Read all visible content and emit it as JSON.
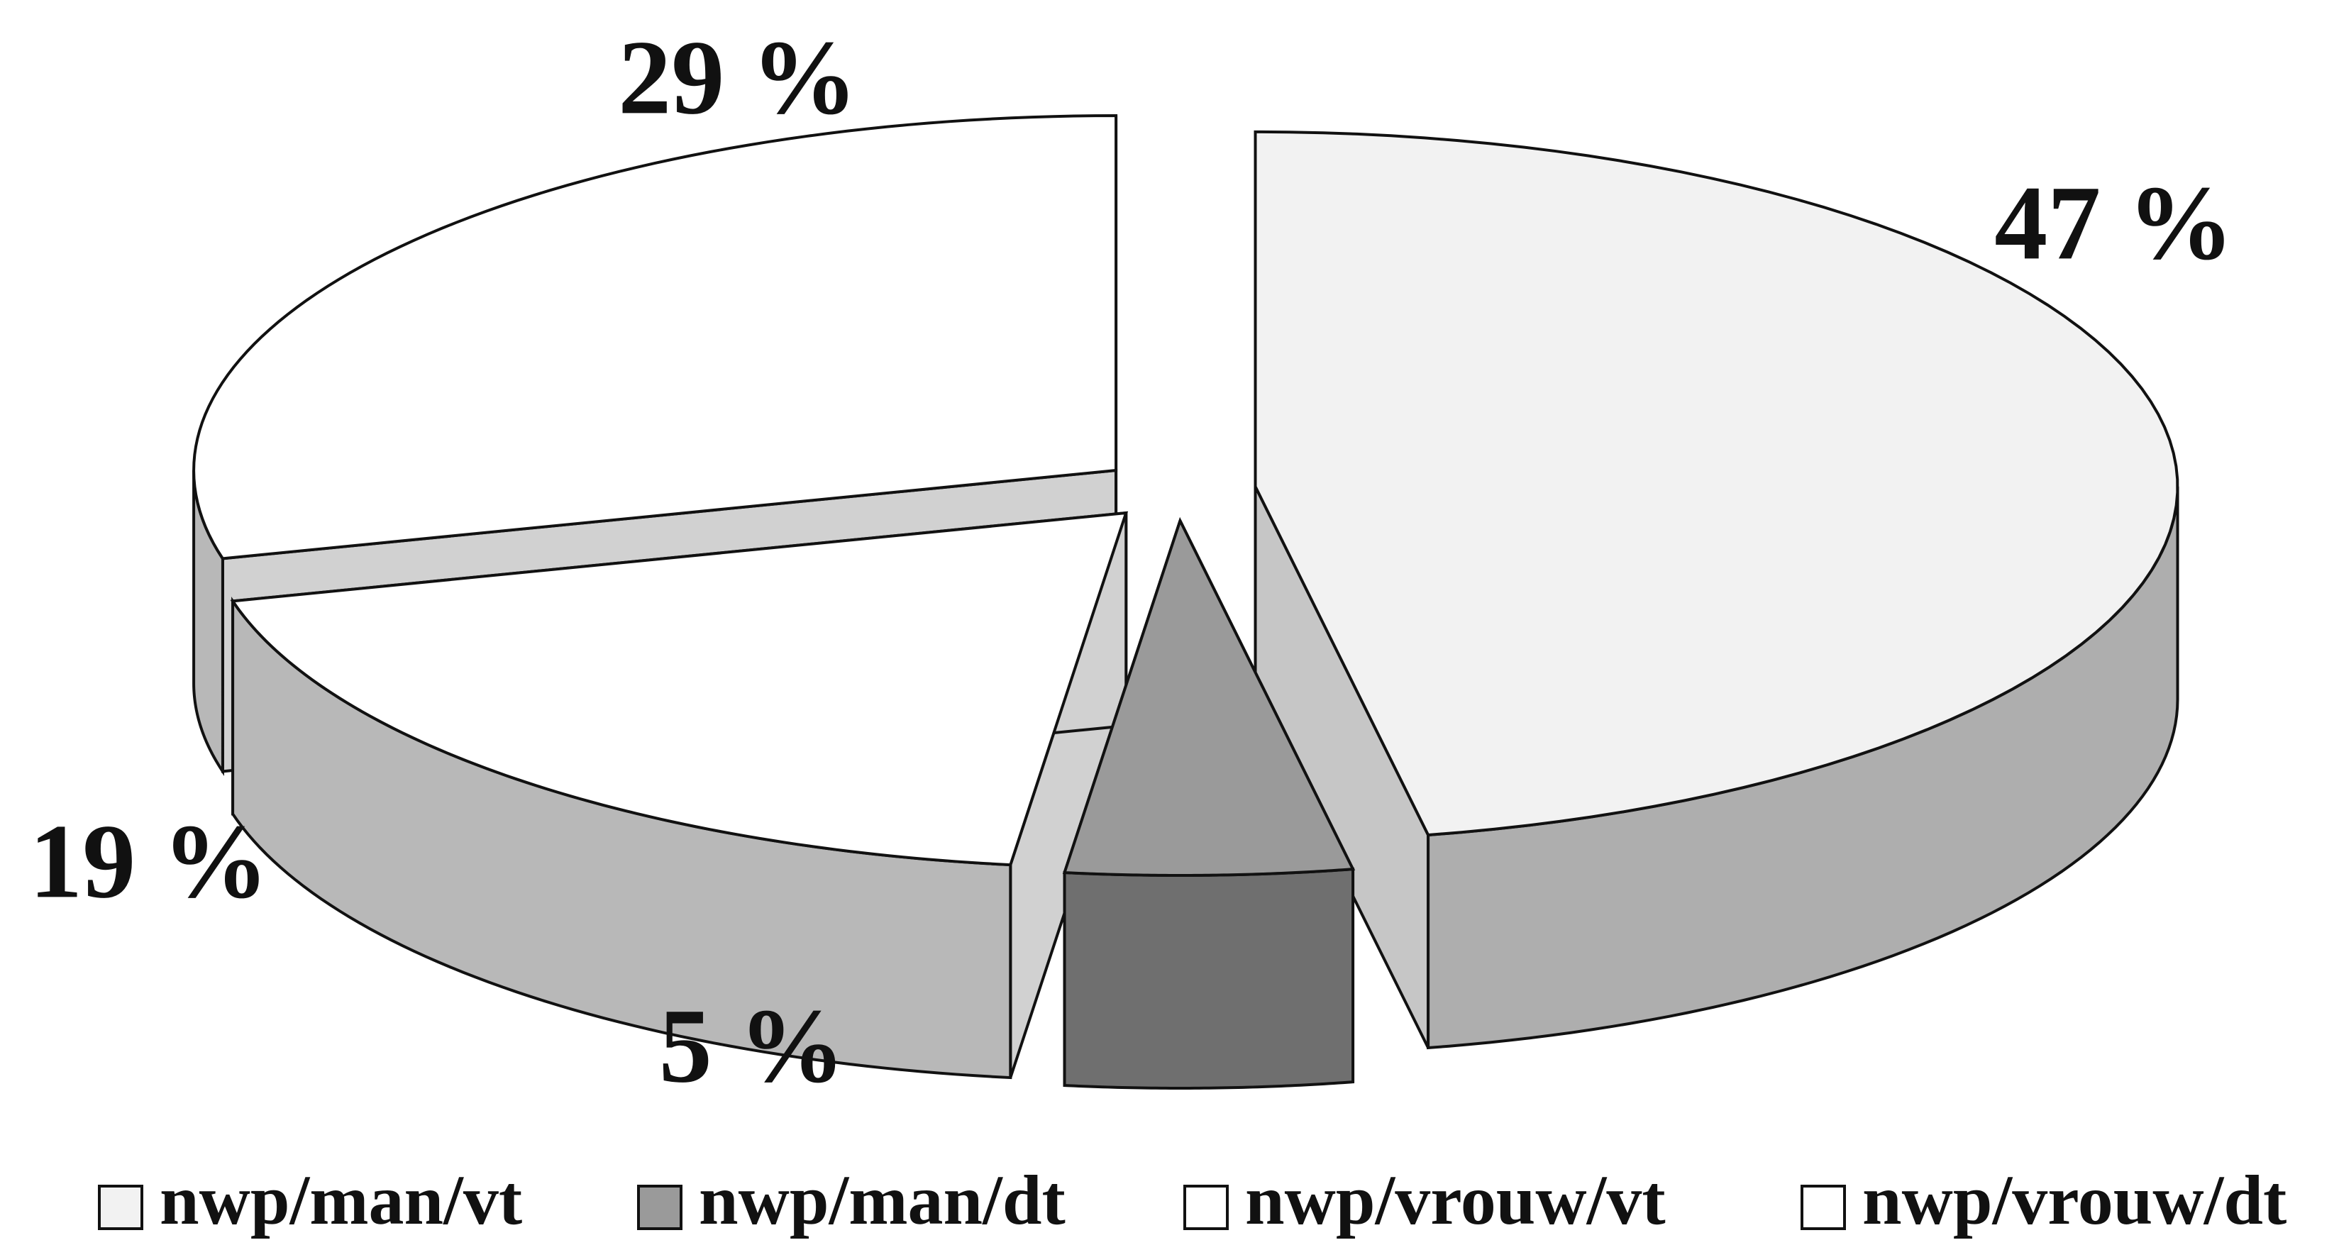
{
  "chart_data": {
    "type": "pie3d",
    "categories": [
      "nwp/man/vt",
      "nwp/man/dt",
      "nwp/vrouw/vt",
      "nwp/vrouw/dt"
    ],
    "values": [
      47,
      5,
      19,
      29
    ],
    "value_labels": [
      "47 %",
      "5 %",
      "19 %",
      "29 %"
    ],
    "colors": [
      "#f2f2f2",
      "#9a9a9a",
      "#ffffff",
      "#ffffff"
    ],
    "legend": "bottom"
  }
}
